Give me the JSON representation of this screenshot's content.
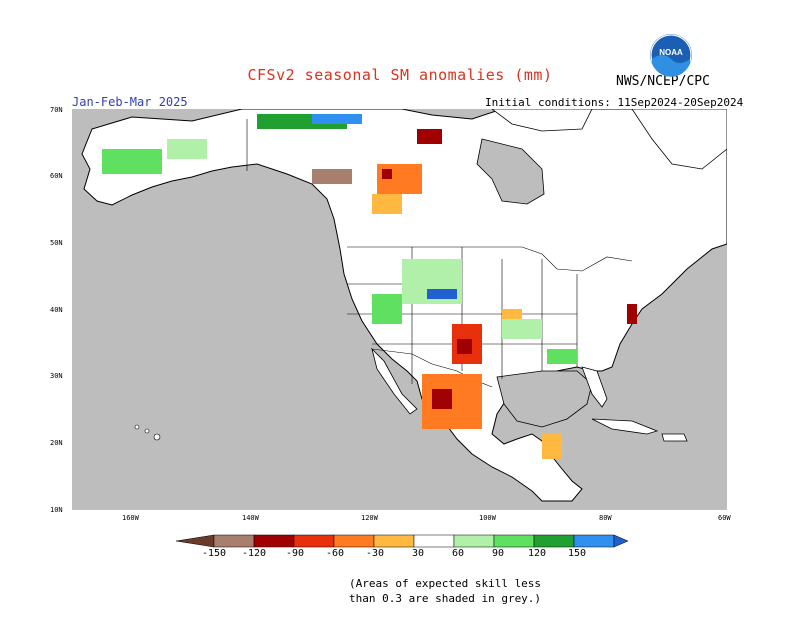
{
  "header": {
    "title": "CFSv2 seasonal SM anomalies (mm)",
    "org": "NWS/NCEP/CPC",
    "season": "Jan-Feb-Mar 2025",
    "initial_conditions": "Initial conditions: 11Sep2024-20Sep2024",
    "logo_text": "NOAA"
  },
  "map": {
    "lat_labels": [
      "70N",
      "60N",
      "50N",
      "40N",
      "30N",
      "20N",
      "10N"
    ],
    "lon_labels": [
      "160W",
      "140W",
      "120W",
      "100W",
      "80W",
      "60W"
    ],
    "colors": {
      "ocean": "#bdbdbd",
      "land": "#ffffff",
      "boundary": "#000000"
    }
  },
  "colorbar": {
    "labels": [
      "-150",
      "-120",
      "-90",
      "-60",
      "-30",
      "30",
      "60",
      "90",
      "120",
      "150"
    ],
    "colors": [
      "#6b3a2a",
      "#a87e6e",
      "#a00000",
      "#e8300c",
      "#ff7a20",
      "#ffb840",
      "#ffffff",
      "#b0f0a8",
      "#60e060",
      "#20a030",
      "#3090f0",
      "#2060d0"
    ]
  },
  "note": {
    "line1": "(Areas of expected skill less",
    "line2": "than 0.3 are shaded in grey.)"
  }
}
